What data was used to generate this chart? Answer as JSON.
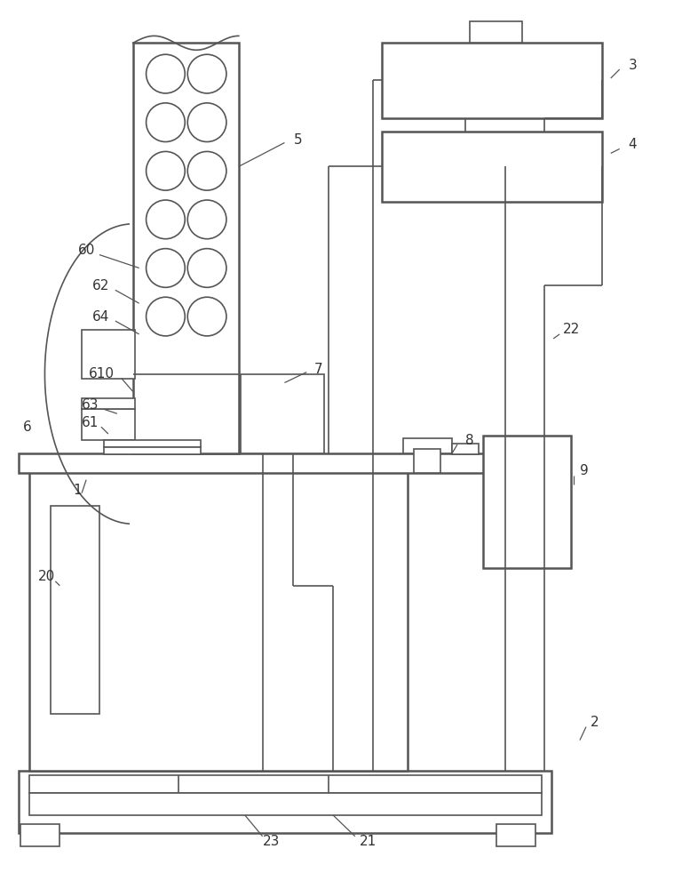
{
  "bg_color": "#ffffff",
  "line_color": "#555555",
  "lw_main": 1.8,
  "lw_thin": 1.2,
  "fig_width": 7.59,
  "fig_height": 10.0
}
